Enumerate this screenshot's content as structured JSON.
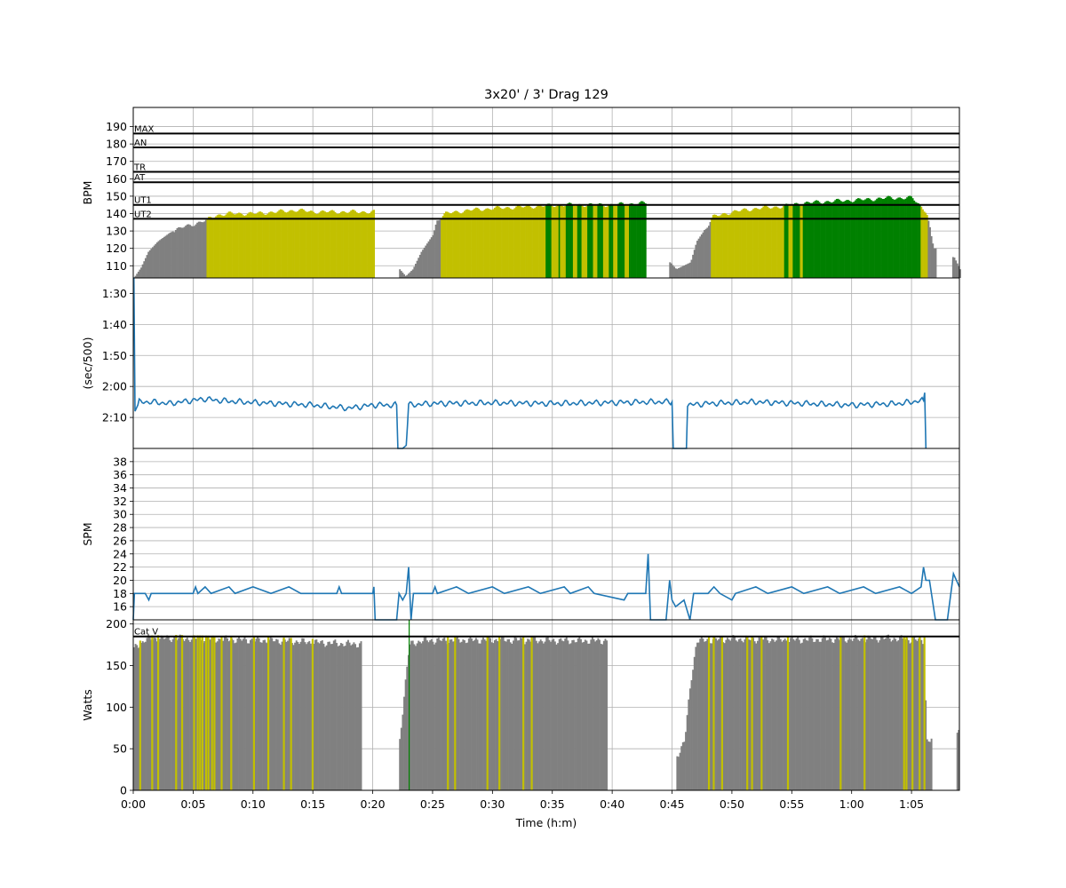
{
  "chart_data": [
    {
      "panel": "hr",
      "type": "bar",
      "title": "3x20' / 3' Drag 129",
      "ylabel": "BPM",
      "ylim": [
        103,
        201
      ],
      "yticks": [
        "110",
        "120",
        "130",
        "140",
        "150",
        "160",
        "170",
        "180",
        "190"
      ],
      "yticks_values": [
        110,
        120,
        130,
        140,
        150,
        160,
        170,
        180,
        190
      ],
      "grid": true,
      "zones": [
        {
          "label": "MAX",
          "value": 186
        },
        {
          "label": "AN",
          "value": 178
        },
        {
          "label": "TR",
          "value": 164
        },
        {
          "label": "AT",
          "value": 158
        },
        {
          "label": "UT1",
          "value": 145
        },
        {
          "label": "UT2",
          "value": 137
        }
      ],
      "segments_minutes_bpm": [
        [
          0.0,
          103
        ],
        [
          0.6,
          109
        ],
        [
          1.2,
          118
        ],
        [
          2.0,
          124
        ],
        [
          3.0,
          129
        ],
        [
          4.0,
          132
        ],
        [
          5.0,
          134
        ],
        [
          6.0,
          136
        ],
        [
          6.8,
          139
        ],
        [
          8.0,
          140
        ],
        [
          10.0,
          140
        ],
        [
          12.0,
          141
        ],
        [
          13.5,
          142
        ],
        [
          15.0,
          141
        ],
        [
          18.0,
          141
        ],
        [
          20.0,
          141
        ],
        [
          20.3,
          0
        ],
        [
          22.0,
          0
        ],
        [
          22.2,
          108
        ],
        [
          22.7,
          104
        ],
        [
          23.3,
          108
        ],
        [
          24.0,
          118
        ],
        [
          25.0,
          128
        ],
        [
          25.3,
          136
        ],
        [
          26.0,
          140
        ],
        [
          28.0,
          142
        ],
        [
          30.0,
          143
        ],
        [
          33.0,
          144
        ],
        [
          36.0,
          145
        ],
        [
          40.0,
          145
        ],
        [
          42.5,
          146
        ],
        [
          43.0,
          0
        ],
        [
          44.5,
          0
        ],
        [
          44.8,
          112
        ],
        [
          45.3,
          108
        ],
        [
          46.5,
          112
        ],
        [
          47.0,
          124
        ],
        [
          48.0,
          134
        ],
        [
          48.3,
          138
        ],
        [
          50.0,
          141
        ],
        [
          52.0,
          143
        ],
        [
          54.0,
          144
        ],
        [
          55.8,
          146
        ],
        [
          58.0,
          147
        ],
        [
          61.0,
          148
        ],
        [
          63.0,
          149
        ],
        [
          65.0,
          149
        ],
        [
          66.2,
          141
        ],
        [
          66.8,
          120
        ],
        [
          67.2,
          0
        ],
        [
          68.2,
          0
        ],
        [
          68.5,
          115
        ],
        [
          69.0,
          108
        ]
      ],
      "bar_colors": {
        "below_ut2": "#808080",
        "ut2": "#c2c000",
        "ut1": "#008000"
      }
    },
    {
      "panel": "pace",
      "type": "line",
      "ylabel": "(sec/500)",
      "ylim_seconds": [
        85,
        140
      ],
      "ytick_labels": [
        "1:30",
        "1:40",
        "1:50",
        "2:00",
        "2:10"
      ],
      "yticks_values": [
        90,
        100,
        110,
        120,
        130
      ],
      "grid": true,
      "series_color": "#1f77b4",
      "points_minutes_seconds": [
        [
          0.0,
          85
        ],
        [
          0.05,
          85
        ],
        [
          0.15,
          128
        ],
        [
          0.5,
          125
        ],
        [
          1.5,
          125
        ],
        [
          3.0,
          125.5
        ],
        [
          4.0,
          125
        ],
        [
          5.0,
          124.5
        ],
        [
          6.0,
          124
        ],
        [
          7.0,
          124.5
        ],
        [
          9.0,
          125
        ],
        [
          12.0,
          125.5
        ],
        [
          15.0,
          126
        ],
        [
          18.0,
          127
        ],
        [
          20.0,
          126
        ],
        [
          22.0,
          126
        ],
        [
          22.1,
          140
        ],
        [
          22.5,
          140
        ],
        [
          22.8,
          139
        ],
        [
          23.0,
          126
        ],
        [
          25.0,
          125.5
        ],
        [
          30.0,
          125.3
        ],
        [
          35.0,
          125.5
        ],
        [
          40.0,
          125.2
        ],
        [
          43.0,
          125
        ],
        [
          45.0,
          125
        ],
        [
          45.1,
          140
        ],
        [
          46.2,
          140
        ],
        [
          46.3,
          126
        ],
        [
          48.0,
          125.5
        ],
        [
          52.0,
          125
        ],
        [
          56.0,
          125.5
        ],
        [
          60.0,
          126
        ],
        [
          64.0,
          125.5
        ],
        [
          66.0,
          124.5
        ],
        [
          66.1,
          122
        ],
        [
          66.2,
          140
        ]
      ]
    },
    {
      "panel": "spm",
      "type": "line",
      "ylabel": "SPM",
      "ylim": [
        14,
        40
      ],
      "yticks": [
        "16",
        "18",
        "20",
        "22",
        "24",
        "26",
        "28",
        "30",
        "32",
        "34",
        "36",
        "38"
      ],
      "yticks_values": [
        16,
        18,
        20,
        22,
        24,
        26,
        28,
        30,
        32,
        34,
        36,
        38
      ],
      "grid": true,
      "series_color": "#1f77b4",
      "points_minutes_spm": [
        [
          0.0,
          14
        ],
        [
          0.1,
          18
        ],
        [
          1.0,
          18
        ],
        [
          1.3,
          17
        ],
        [
          1.5,
          18
        ],
        [
          5.0,
          18
        ],
        [
          5.2,
          19
        ],
        [
          5.4,
          18
        ],
        [
          6.0,
          19
        ],
        [
          6.5,
          18
        ],
        [
          8.0,
          19
        ],
        [
          8.5,
          18
        ],
        [
          10.0,
          19
        ],
        [
          11.5,
          18
        ],
        [
          13.0,
          19
        ],
        [
          14.0,
          18
        ],
        [
          17.0,
          18
        ],
        [
          17.2,
          19
        ],
        [
          17.4,
          18
        ],
        [
          20.0,
          18
        ],
        [
          20.1,
          19
        ],
        [
          20.2,
          14
        ],
        [
          22.0,
          14
        ],
        [
          22.2,
          18
        ],
        [
          22.5,
          17
        ],
        [
          22.8,
          18
        ],
        [
          23.0,
          22
        ],
        [
          23.2,
          14
        ],
        [
          23.4,
          18
        ],
        [
          25.0,
          18
        ],
        [
          25.2,
          19
        ],
        [
          25.4,
          18
        ],
        [
          27.0,
          19
        ],
        [
          28.0,
          18
        ],
        [
          30.0,
          19
        ],
        [
          31.0,
          18
        ],
        [
          33.0,
          19
        ],
        [
          34.0,
          18
        ],
        [
          36.0,
          19
        ],
        [
          36.5,
          18
        ],
        [
          38.0,
          19
        ],
        [
          38.5,
          18
        ],
        [
          41.0,
          17
        ],
        [
          41.3,
          18
        ],
        [
          42.8,
          18
        ],
        [
          43.0,
          24
        ],
        [
          43.2,
          14
        ],
        [
          44.5,
          14
        ],
        [
          44.8,
          20
        ],
        [
          45.0,
          17
        ],
        [
          45.3,
          16
        ],
        [
          46.0,
          17
        ],
        [
          46.5,
          14
        ],
        [
          46.8,
          18
        ],
        [
          48.0,
          18
        ],
        [
          48.5,
          19
        ],
        [
          49.0,
          18
        ],
        [
          50.0,
          17
        ],
        [
          50.3,
          18
        ],
        [
          52.0,
          19
        ],
        [
          53.0,
          18
        ],
        [
          55.0,
          19
        ],
        [
          56.0,
          18
        ],
        [
          58.0,
          19
        ],
        [
          59.0,
          18
        ],
        [
          61.0,
          19
        ],
        [
          62.0,
          18
        ],
        [
          64.0,
          19
        ],
        [
          65.0,
          18
        ],
        [
          65.8,
          19
        ],
        [
          66.0,
          22
        ],
        [
          66.2,
          20
        ],
        [
          66.5,
          20
        ],
        [
          67.0,
          14
        ],
        [
          68.0,
          14
        ],
        [
          68.5,
          21
        ],
        [
          69.0,
          19
        ]
      ]
    },
    {
      "panel": "power",
      "type": "bar",
      "xlabel": "Time (h:m)",
      "ylabel": "Watts",
      "ylim": [
        0,
        205
      ],
      "yticks": [
        "0",
        "50",
        "100",
        "150",
        "200"
      ],
      "yticks_values": [
        0,
        50,
        100,
        150,
        200
      ],
      "xlim_minutes": [
        0,
        69
      ],
      "xtick_labels": [
        "0:00",
        "0:05",
        "0:10",
        "0:15",
        "0:20",
        "0:25",
        "0:30",
        "0:35",
        "0:40",
        "0:45",
        "0:50",
        "0:55",
        "1:00",
        "1:05"
      ],
      "xticks_values": [
        0,
        5,
        10,
        15,
        20,
        25,
        30,
        35,
        40,
        45,
        50,
        55,
        60,
        65
      ],
      "grid": true,
      "threshold": {
        "label": "Cat V",
        "value": 185
      },
      "segments_minutes_watts": [
        [
          0.0,
          170
        ],
        [
          1.0,
          182
        ],
        [
          3.0,
          183
        ],
        [
          6.0,
          182
        ],
        [
          9.0,
          181
        ],
        [
          12.0,
          180
        ],
        [
          15.0,
          178
        ],
        [
          18.0,
          176
        ],
        [
          20.0,
          0
        ],
        [
          22.0,
          0
        ],
        [
          22.2,
          60
        ],
        [
          22.6,
          120
        ],
        [
          23.0,
          175
        ],
        [
          24.0,
          180
        ],
        [
          30.0,
          181
        ],
        [
          36.0,
          180
        ],
        [
          43.0,
          0
        ],
        [
          45.2,
          0
        ],
        [
          45.3,
          40
        ],
        [
          46.0,
          60
        ],
        [
          46.5,
          130
        ],
        [
          47.0,
          180
        ],
        [
          50.0,
          182
        ],
        [
          55.0,
          181
        ],
        [
          60.0,
          182
        ],
        [
          63.0,
          183
        ],
        [
          66.0,
          180
        ],
        [
          66.2,
          60
        ],
        [
          67.2,
          0
        ],
        [
          68.6,
          0
        ],
        [
          68.8,
          70
        ],
        [
          69.0,
          0
        ]
      ],
      "yellow_markers_minutes": [
        0.5,
        1.5,
        2.0,
        3.5,
        4.0,
        5.0,
        5.3,
        5.5,
        5.7,
        6.0,
        6.2,
        6.5,
        6.7,
        7.3,
        8.1,
        10.0,
        11.2,
        12.5,
        13.1,
        14.9,
        26.2,
        26.8,
        29.5,
        30.5,
        32.5,
        33.2,
        48.0,
        48.4,
        49.1,
        51.2,
        51.6,
        52.4,
        54.6,
        59.0,
        61.0,
        64.3,
        64.5,
        65.0,
        65.6,
        66.0
      ],
      "green_marker_minutes": 23.0,
      "colors": {
        "bar": "#808080",
        "marker": "#c2c000",
        "green": "#008000"
      }
    }
  ]
}
